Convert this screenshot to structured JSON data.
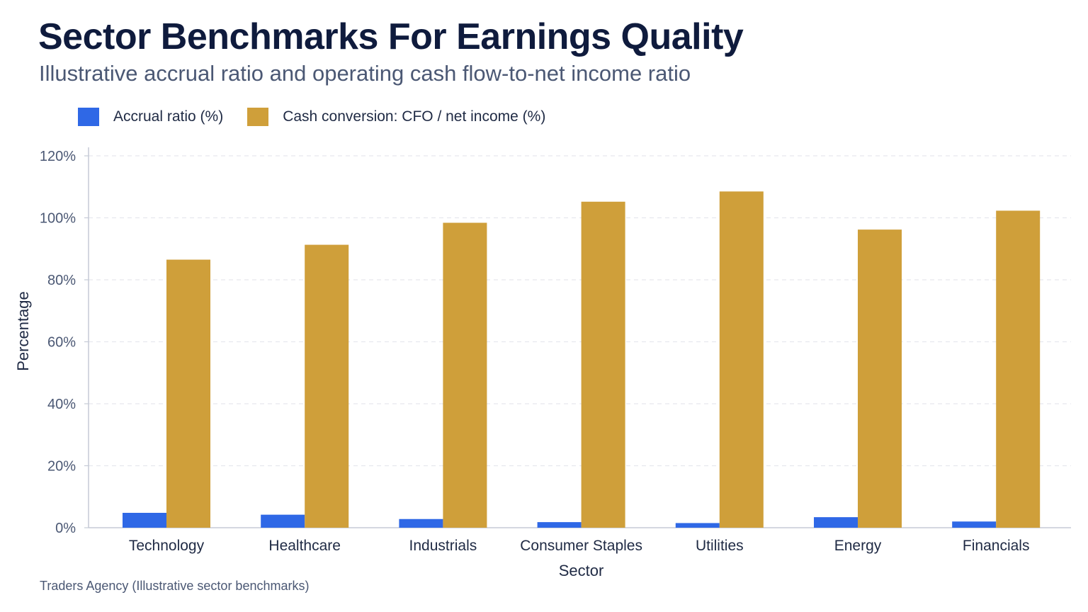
{
  "header": {
    "title": "Sector Benchmarks For Earnings Quality",
    "subtitle": "Illustrative accrual ratio and operating cash flow-to-net income ratio"
  },
  "footer": {
    "source": "Traders Agency (Illustrative sector benchmarks)"
  },
  "colors": {
    "accrual": "#2f68e6",
    "cash": "#cf9f3a",
    "grid": "#e6e8ee",
    "axis": "#c5cad6"
  },
  "chart_data": {
    "type": "bar",
    "xlabel": "Sector",
    "ylabel": "Percentage",
    "ylim": [
      0,
      120
    ],
    "yticks": [
      "0%",
      "20%",
      "40%",
      "60%",
      "80%",
      "100%",
      "120%"
    ],
    "grid": true,
    "legend_position": "top-left",
    "categories": [
      "Technology",
      "Healthcare",
      "Industrials",
      "Consumer Staples",
      "Utilities",
      "Energy",
      "Financials"
    ],
    "series": [
      {
        "name": "Accrual ratio (%)",
        "values": [
          4.8,
          4.2,
          2.8,
          1.8,
          1.5,
          3.4,
          2.0
        ]
      },
      {
        "name": "Cash conversion: CFO / net income (%)",
        "values": [
          86.5,
          91.3,
          98.4,
          105.2,
          108.5,
          96.2,
          102.3
        ]
      }
    ]
  }
}
